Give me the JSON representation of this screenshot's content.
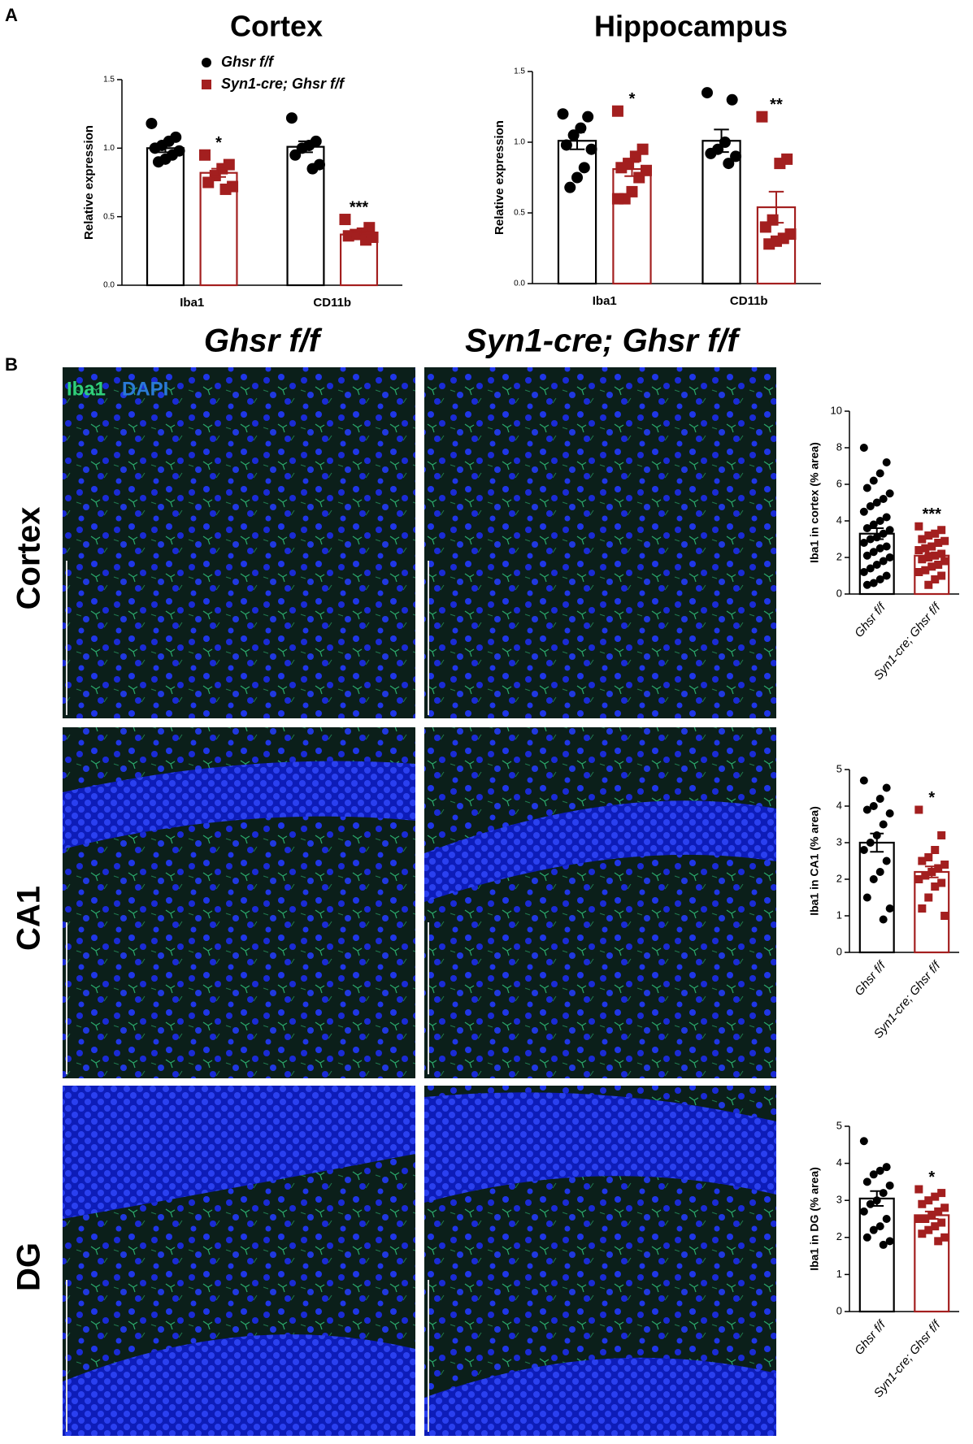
{
  "panel_labels": [
    "A",
    "B"
  ],
  "column_headers": [
    "Ghsr f/f",
    "Syn1-cre; Ghsr f/f"
  ],
  "row_labels": [
    "Cortex",
    "CA1",
    "DG"
  ],
  "stain_labels": [
    "Iba1",
    "DAPI"
  ],
  "chart_data": [
    {
      "type": "bar",
      "title": "Cortex",
      "ylabel": "Relative expression",
      "legend": true,
      "categories": [
        "Iba1",
        "CD11b"
      ],
      "ylim": [
        0,
        1.5
      ],
      "yticks": [
        {
          "value": 0,
          "label": "0.0"
        },
        {
          "value": 0.5,
          "label": "0.5"
        },
        {
          "value": 1,
          "label": "1.0"
        },
        {
          "value": 1.5,
          "label": "1.5"
        }
      ],
      "series": [
        {
          "name": "Ghsr f/f",
          "color": "#000000",
          "marker": "circle",
          "values": [
            1.0,
            1.01
          ],
          "errors": [
            0.03,
            0.04
          ],
          "points": [
            [
              1.18,
              1.08,
              1.05,
              1.02,
              1.0,
              0.98,
              0.95,
              0.92,
              0.9
            ],
            [
              1.22,
              1.05,
              1.02,
              1.0,
              0.95,
              0.88,
              0.85
            ]
          ]
        },
        {
          "name": "Syn1-cre; Ghsr f/f",
          "color": "#a31f1f",
          "marker": "square",
          "values": [
            0.82,
            0.37
          ],
          "errors": [
            0.03,
            0.02
          ],
          "points": [
            [
              0.95,
              0.88,
              0.85,
              0.8,
              0.75,
              0.72,
              0.7
            ],
            [
              0.48,
              0.42,
              0.38,
              0.37,
              0.36,
              0.35,
              0.33
            ]
          ],
          "significance": [
            "*",
            "***"
          ]
        }
      ]
    },
    {
      "type": "bar",
      "title": "Hippocampus",
      "ylabel": "Relative expression",
      "categories": [
        "Iba1",
        "CD11b"
      ],
      "ylim": [
        0,
        1.5
      ],
      "yticks": [
        {
          "value": 0,
          "label": "0.0"
        },
        {
          "value": 0.5,
          "label": "0.5"
        },
        {
          "value": 1,
          "label": "1.0"
        },
        {
          "value": 1.5,
          "label": "1.5"
        }
      ],
      "series": [
        {
          "color": "#000000",
          "marker": "circle",
          "values": [
            1.01,
            1.01
          ],
          "errors": [
            0.06,
            0.08
          ],
          "points": [
            [
              1.2,
              1.18,
              1.1,
              1.05,
              0.98,
              0.95,
              0.82,
              0.75,
              0.68
            ],
            [
              1.35,
              1.3,
              1.0,
              0.95,
              0.92,
              0.9,
              0.85
            ]
          ]
        },
        {
          "color": "#a31f1f",
          "marker": "square",
          "values": [
            0.81,
            0.54
          ],
          "errors": [
            0.05,
            0.11
          ],
          "points": [
            [
              1.22,
              0.95,
              0.9,
              0.85,
              0.82,
              0.8,
              0.75,
              0.65,
              0.6,
              0.6
            ],
            [
              1.18,
              0.88,
              0.85,
              0.45,
              0.4,
              0.35,
              0.32,
              0.3,
              0.28
            ]
          ],
          "significance": [
            "*",
            "**"
          ]
        }
      ]
    },
    {
      "type": "bar",
      "ylabel": "Iba1 in cortex (% area)",
      "categories": [
        "Ghsr f/f",
        "Syn1-cre; Ghsr f/f"
      ],
      "colors": [
        "#000000",
        "#a31f1f"
      ],
      "markers": [
        "circle",
        "square"
      ],
      "values": [
        3.3,
        2.1
      ],
      "errors": [
        0.3,
        0.15
      ],
      "significance": [
        null,
        "***"
      ],
      "points": [
        [
          8.0,
          7.2,
          6.6,
          6.2,
          5.8,
          5.5,
          5.2,
          5.0,
          4.8,
          4.5,
          4.2,
          4.0,
          3.8,
          3.6,
          3.5,
          3.3,
          3.1,
          3.0,
          2.8,
          2.6,
          2.5,
          2.3,
          2.1,
          2.0,
          1.8,
          1.6,
          1.4,
          1.2,
          1.0,
          0.8,
          0.6,
          0.5
        ],
        [
          3.7,
          3.5,
          3.3,
          3.2,
          3.0,
          2.9,
          2.8,
          2.6,
          2.5,
          2.4,
          2.2,
          2.1,
          2.0,
          1.9,
          1.8,
          1.6,
          1.5,
          1.3,
          1.2,
          1.0,
          0.8,
          0.5
        ]
      ],
      "ylim": [
        0,
        10
      ],
      "yticks": [
        0,
        2,
        4,
        6,
        8,
        10
      ]
    },
    {
      "type": "bar",
      "ylabel": "Iba1 in CA1 (% area)",
      "categories": [
        "Ghsr f/f",
        "Syn1-cre; Ghsr f/f"
      ],
      "colors": [
        "#000000",
        "#a31f1f"
      ],
      "markers": [
        "circle",
        "square"
      ],
      "values": [
        3.0,
        2.2
      ],
      "errors": [
        0.25,
        0.15
      ],
      "significance": [
        null,
        "*"
      ],
      "points": [
        [
          4.7,
          4.5,
          4.2,
          4.0,
          3.9,
          3.8,
          3.5,
          3.2,
          3.0,
          2.8,
          2.5,
          2.2,
          2.0,
          1.5,
          1.2,
          0.9
        ],
        [
          3.9,
          3.2,
          2.8,
          2.6,
          2.5,
          2.4,
          2.3,
          2.2,
          2.1,
          2.0,
          1.9,
          1.8,
          1.5,
          1.2,
          1.0
        ]
      ],
      "ylim": [
        0,
        5
      ],
      "yticks": [
        0,
        1,
        2,
        3,
        4,
        5
      ]
    },
    {
      "type": "bar",
      "ylabel": "Iba1 in DG (% area)",
      "categories": [
        "Ghsr f/f",
        "Syn1-cre; Ghsr f/f"
      ],
      "colors": [
        "#000000",
        "#a31f1f"
      ],
      "markers": [
        "circle",
        "square"
      ],
      "values": [
        3.05,
        2.6
      ],
      "errors": [
        0.2,
        0.1
      ],
      "significance": [
        null,
        "*"
      ],
      "points": [
        [
          4.6,
          3.9,
          3.8,
          3.7,
          3.5,
          3.4,
          3.2,
          3.0,
          2.9,
          2.7,
          2.5,
          2.3,
          2.2,
          2.0,
          1.9,
          1.8
        ],
        [
          3.3,
          3.2,
          3.1,
          3.0,
          2.9,
          2.8,
          2.7,
          2.6,
          2.5,
          2.5,
          2.4,
          2.3,
          2.2,
          2.1,
          2.0,
          1.9
        ]
      ],
      "ylim": [
        0,
        5
      ],
      "yticks": [
        0,
        1,
        2,
        3,
        4,
        5
      ]
    }
  ]
}
